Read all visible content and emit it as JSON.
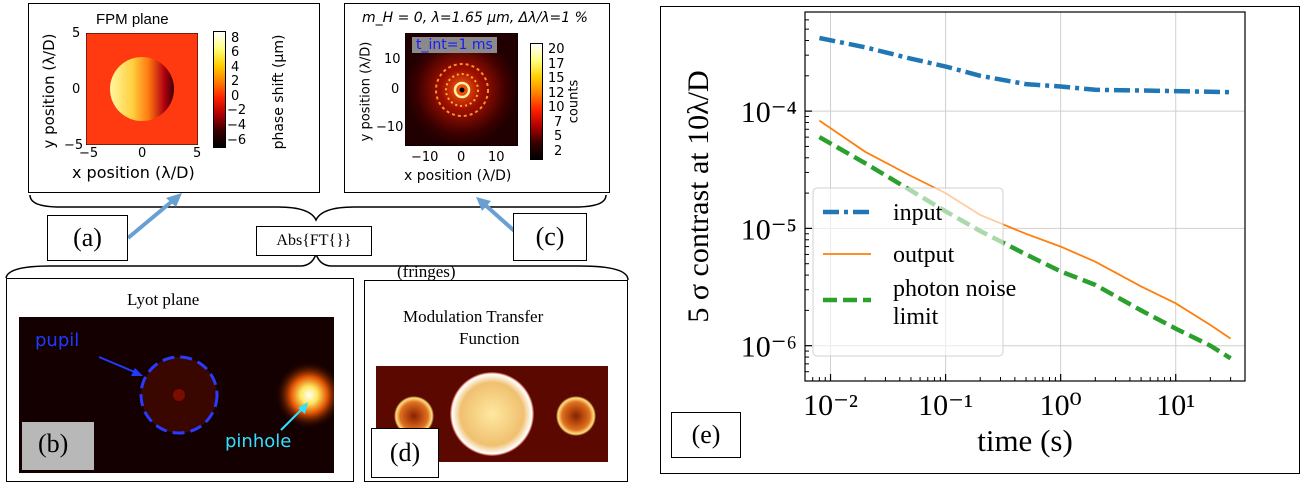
{
  "panel_a": {
    "title": "FPM plane",
    "x_ticks": [
      "−5",
      "0",
      "5"
    ],
    "y_ticks": [
      "5",
      "0",
      "−5"
    ],
    "xlabel": "x position (λ/D)",
    "ylabel": "y position (λ/D)",
    "colorbar_ticks": [
      "8",
      "6",
      "4",
      "2",
      "0",
      "−2",
      "−4",
      "−6"
    ],
    "colorbar_label": "phase shift (μm)",
    "label": "(a)"
  },
  "panel_c": {
    "title": "m_H = 0, λ=1.65 μm, Δλ/λ=1 %",
    "annotation": "t_int=1 ms",
    "x_ticks": [
      "−10",
      "0",
      "10"
    ],
    "y_ticks": [
      "10",
      "0",
      "−10"
    ],
    "xlabel": "x position (λ/D)",
    "ylabel": "y position (λ/D)",
    "colorbar_ticks": [
      "20",
      "17",
      "15",
      "12",
      "10",
      "7",
      "5",
      "2"
    ],
    "colorbar_label": "counts",
    "label": "(c)"
  },
  "middle": {
    "transform": "Abs{FT{}}",
    "fringes": "(fringes)"
  },
  "panel_b": {
    "title": "Lyot plane",
    "pupil": "pupil",
    "pinhole": "pinhole",
    "label": "(b)"
  },
  "panel_d": {
    "title_line1": "Modulation Transfer",
    "title_line2": "Function",
    "label": "(d)"
  },
  "panel_e": {
    "label": "(e)",
    "chart_data": {
      "type": "line",
      "xlabel": "time (s)",
      "ylabel": "5 σ contrast at 10λ/D",
      "x_scale": "log",
      "y_scale": "log",
      "xlim": [
        0.006,
        40
      ],
      "ylim": [
        5e-07,
        0.0007
      ],
      "x_ticks": [
        0.01,
        0.1,
        1,
        10
      ],
      "y_ticks": [
        1e-06,
        1e-05,
        0.0001
      ],
      "x_tick_labels": [
        "10⁻²",
        "10⁻¹",
        "10⁰",
        "10¹"
      ],
      "y_tick_labels": [
        "10⁻⁶",
        "10⁻⁵",
        "10⁻⁴"
      ],
      "grid": true,
      "legend_placement": "lower-left",
      "series": [
        {
          "name": "input",
          "color": "#1f77b4",
          "style": "dashdot",
          "x": [
            0.008,
            0.02,
            0.05,
            0.1,
            0.2,
            0.5,
            1,
            2,
            5,
            10,
            20,
            30
          ],
          "y": [
            0.00042,
            0.00035,
            0.00028,
            0.00024,
            0.0002,
            0.00017,
            0.000162,
            0.000152,
            0.00015,
            0.000148,
            0.000146,
            0.000145
          ]
        },
        {
          "name": "output",
          "color": "#ff7f0e",
          "style": "solid",
          "x": [
            0.008,
            0.02,
            0.05,
            0.1,
            0.2,
            0.5,
            1,
            2,
            5,
            10,
            20,
            30
          ],
          "y": [
            8.3e-05,
            4.5e-05,
            2.8e-05,
            2e-05,
            1.3e-05,
            9e-06,
            7e-06,
            5.2e-06,
            3.2e-06,
            2.3e-06,
            1.5e-06,
            1.15e-06
          ]
        },
        {
          "name": "photon noise limit",
          "color": "#2ca02c",
          "style": "dashed",
          "x": [
            0.008,
            0.02,
            0.05,
            0.1,
            0.2,
            0.5,
            1,
            2,
            5,
            10,
            20,
            30
          ],
          "y": [
            6e-05,
            3.6e-05,
            2.1e-05,
            1.4e-05,
            9.5e-06,
            6e-06,
            4.3e-06,
            3.3e-06,
            2e-06,
            1.4e-06,
            1e-06,
            7.8e-07
          ]
        }
      ]
    }
  }
}
